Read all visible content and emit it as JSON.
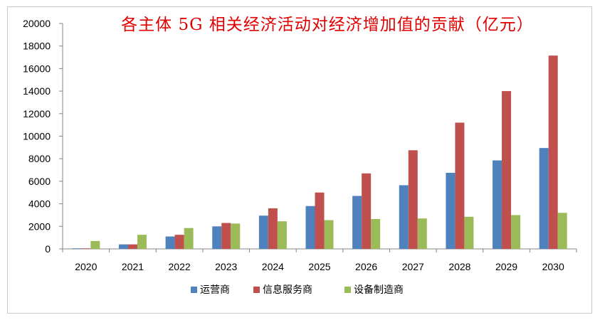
{
  "chart_data": {
    "type": "bar",
    "title": "各主体 5G 相关经济活动对经济增加值的贡献（亿元）",
    "categories": [
      "2020",
      "2021",
      "2022",
      "2023",
      "2024",
      "2025",
      "2026",
      "2027",
      "2028",
      "2029",
      "2030"
    ],
    "series": [
      {
        "name": "运营商",
        "color": "#4f81bd",
        "values": [
          50,
          400,
          1100,
          2000,
          2950,
          3800,
          4700,
          5650,
          6750,
          7850,
          8950
        ]
      },
      {
        "name": "信息服务商",
        "color": "#c0504d",
        "values": [
          50,
          400,
          1250,
          2300,
          3600,
          5000,
          6700,
          8750,
          11200,
          14000,
          17150
        ]
      },
      {
        "name": "设备制造商",
        "color": "#9bbb59",
        "values": [
          700,
          1250,
          1850,
          2250,
          2450,
          2550,
          2650,
          2700,
          2850,
          3000,
          3200
        ]
      }
    ],
    "yticks": [
      "0",
      "2000",
      "4000",
      "6000",
      "8000",
      "10000",
      "12000",
      "14000",
      "16000",
      "18000",
      "20000"
    ],
    "ylim": [
      0,
      20000
    ],
    "grid": false,
    "legend_position": "bottom"
  }
}
